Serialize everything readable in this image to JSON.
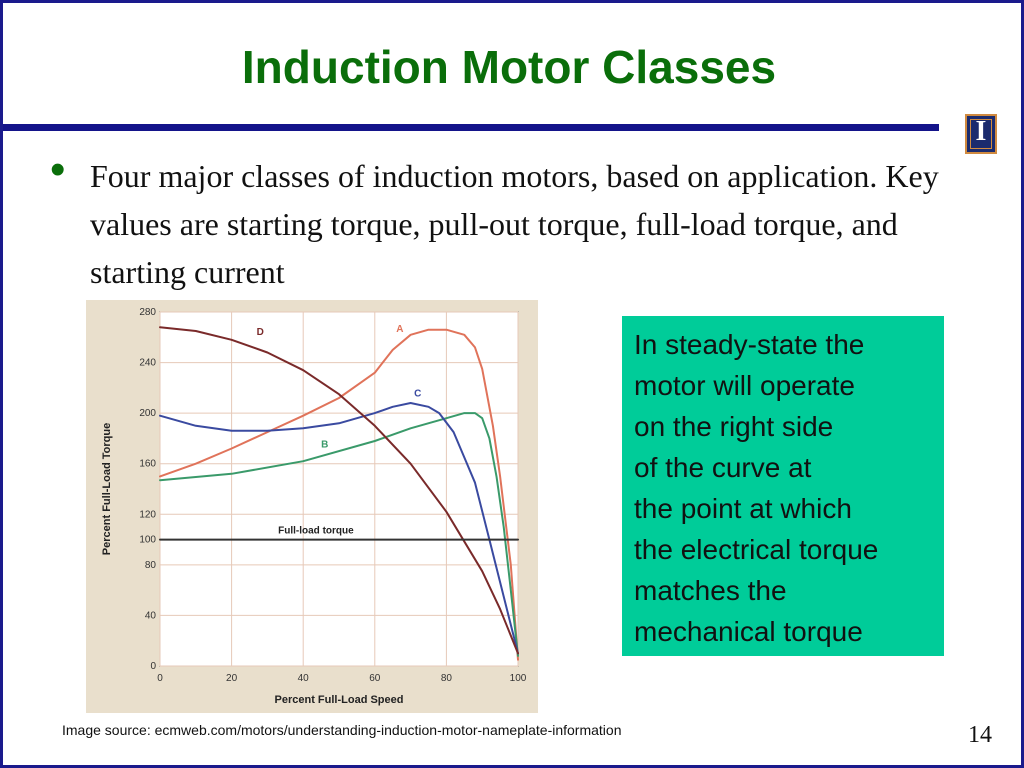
{
  "slide": {
    "title": "Induction Motor Classes",
    "bullet": "Four major classes of induction motors, based on application.  Key values are starting torque, pull-out torque, full-load torque, and starting current",
    "note_lines": [
      "In steady-state the",
      "motor will operate",
      "on the right side",
      "of the curve at",
      "the point at which",
      "the electrical torque",
      "matches the",
      "mechanical torque"
    ],
    "source": "Image source: ecmweb.com/motors/understanding-induction-motor-nameplate-information",
    "page_number": "14",
    "logo_glyph": "I",
    "colors": {
      "title": "#0a6e0a",
      "rule": "#14148a",
      "note_bg": "#00cc99"
    }
  },
  "chart_data": {
    "type": "line",
    "xlabel": "Percent Full-Load Speed",
    "ylabel": "Percent Full-Load Torque",
    "xlim": [
      0,
      100
    ],
    "ylim": [
      0,
      280
    ],
    "xticks": [
      0,
      20,
      40,
      60,
      80,
      100
    ],
    "yticks": [
      0,
      40,
      80,
      100,
      120,
      160,
      200,
      240,
      280
    ],
    "grid": true,
    "series": [
      {
        "name": "A",
        "color": "#e0735a",
        "x": [
          0,
          10,
          20,
          30,
          40,
          50,
          60,
          65,
          70,
          75,
          80,
          85,
          88,
          90,
          93,
          95,
          98,
          100
        ],
        "y": [
          150,
          160,
          172,
          185,
          198,
          212,
          232,
          250,
          262,
          266,
          266,
          262,
          252,
          235,
          190,
          150,
          80,
          5
        ]
      },
      {
        "name": "B",
        "color": "#3a9a6a",
        "x": [
          0,
          20,
          40,
          60,
          70,
          80,
          85,
          88,
          90,
          92,
          94,
          96,
          98,
          100
        ],
        "y": [
          147,
          152,
          162,
          178,
          188,
          196,
          200,
          200,
          196,
          180,
          150,
          110,
          60,
          8
        ]
      },
      {
        "name": "C",
        "color": "#3a4aa0",
        "x": [
          0,
          10,
          20,
          30,
          40,
          50,
          60,
          65,
          70,
          75,
          78,
          82,
          85,
          88,
          92,
          96,
          100
        ],
        "y": [
          198,
          190,
          186,
          186,
          188,
          192,
          200,
          205,
          208,
          205,
          200,
          185,
          165,
          145,
          100,
          55,
          10
        ]
      },
      {
        "name": "D",
        "color": "#7a2a2a",
        "x": [
          0,
          10,
          20,
          30,
          40,
          50,
          60,
          70,
          80,
          90,
          95,
          100
        ],
        "y": [
          268,
          265,
          258,
          248,
          234,
          215,
          190,
          160,
          122,
          75,
          45,
          10
        ]
      },
      {
        "name": "Full-load torque",
        "color": "#333333",
        "x": [
          0,
          100
        ],
        "y": [
          100,
          100
        ]
      }
    ],
    "labels": [
      {
        "text": "A",
        "x": 66,
        "y": 264,
        "color": "#e0735a"
      },
      {
        "text": "B",
        "x": 45,
        "y": 173,
        "color": "#3a9a6a"
      },
      {
        "text": "C",
        "x": 71,
        "y": 213,
        "color": "#3a4aa0"
      },
      {
        "text": "D",
        "x": 27,
        "y": 262,
        "color": "#7a2a2a"
      },
      {
        "text": "Full-load torque",
        "x": 33,
        "y": 105,
        "color": "#222222"
      }
    ]
  }
}
